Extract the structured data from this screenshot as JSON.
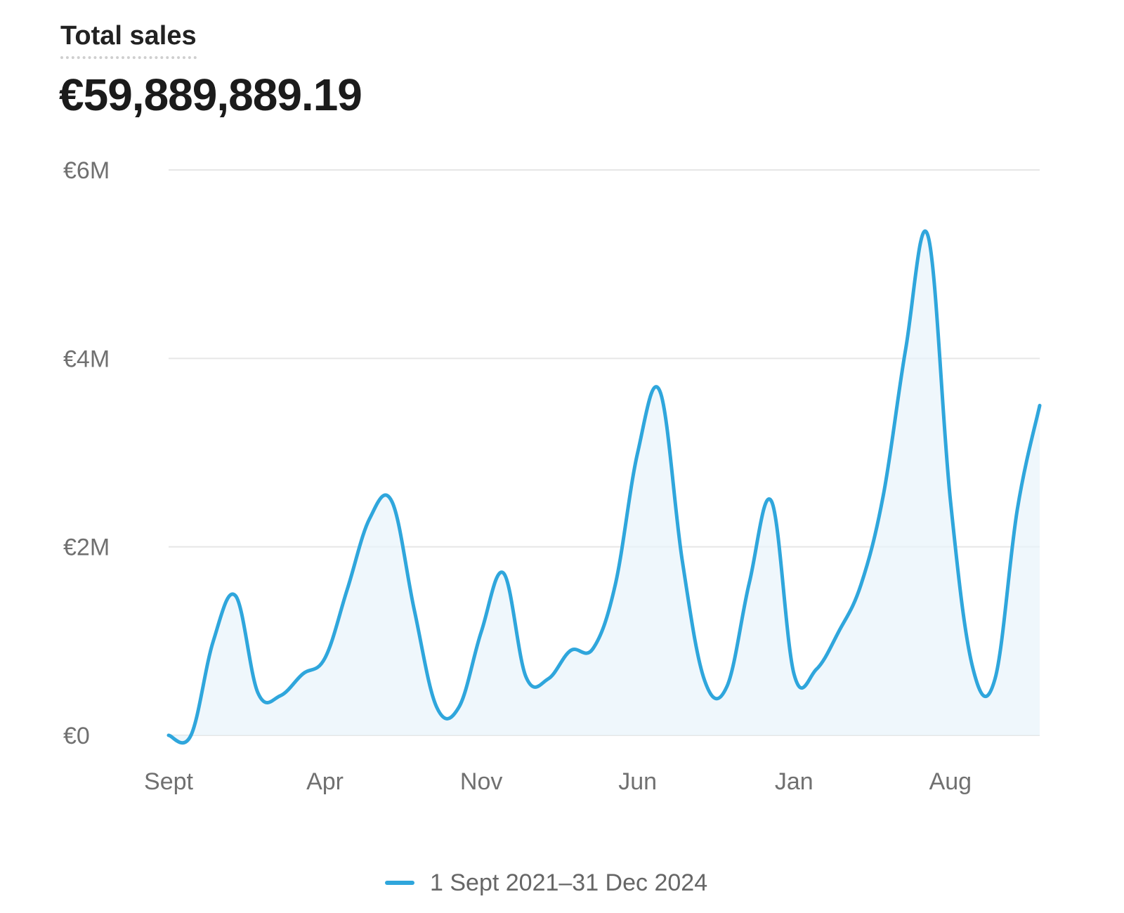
{
  "header": {
    "title": "Total sales",
    "total_value": "€59,889,889.19"
  },
  "legend": {
    "label": "1 Sept 2021–31 Dec 2024",
    "color": "#2fa6dc"
  },
  "colors": {
    "line": "#2fa6dc",
    "fill": "#e8f4fb",
    "grid": "#e6e6e6",
    "tick_text": "#707070"
  },
  "chart_data": {
    "type": "line",
    "title": "Total sales",
    "xlabel": "",
    "ylabel": "",
    "ylim": [
      0,
      6000000
    ],
    "xlim": [
      "2021-09",
      "2024-12"
    ],
    "y_ticks": [
      {
        "value": 0,
        "label": "€0"
      },
      {
        "value": 2000000,
        "label": "€2M"
      },
      {
        "value": 4000000,
        "label": "€4M"
      },
      {
        "value": 6000000,
        "label": "€6M"
      }
    ],
    "x_ticks": [
      {
        "value": "2021-09",
        "label": "Sept"
      },
      {
        "value": "2022-04",
        "label": "Apr"
      },
      {
        "value": "2022-11",
        "label": "Nov"
      },
      {
        "value": "2023-06",
        "label": "Jun"
      },
      {
        "value": "2024-01",
        "label": "Jan"
      },
      {
        "value": "2024-08",
        "label": "Aug"
      }
    ],
    "grid": true,
    "legend_position": "bottom-center",
    "series": [
      {
        "name": "1 Sept 2021–31 Dec 2024",
        "x": [
          "2021-09",
          "2021-10",
          "2021-11",
          "2021-12",
          "2022-01",
          "2022-02",
          "2022-03",
          "2022-04",
          "2022-05",
          "2022-06",
          "2022-07",
          "2022-08",
          "2022-09",
          "2022-10",
          "2022-11",
          "2022-12",
          "2023-01",
          "2023-02",
          "2023-03",
          "2023-04",
          "2023-05",
          "2023-06",
          "2023-07",
          "2023-08",
          "2023-09",
          "2023-10",
          "2023-11",
          "2023-12",
          "2024-01",
          "2024-02",
          "2024-03",
          "2024-04",
          "2024-05",
          "2024-06",
          "2024-07",
          "2024-08",
          "2024-09",
          "2024-10",
          "2024-11",
          "2024-12"
        ],
        "values": [
          0,
          0,
          1000000,
          1480000,
          450000,
          420000,
          650000,
          820000,
          1550000,
          2300000,
          2480000,
          1330000,
          300000,
          300000,
          1100000,
          1720000,
          620000,
          600000,
          900000,
          920000,
          1600000,
          3000000,
          3650000,
          1850000,
          580000,
          520000,
          1620000,
          2480000,
          650000,
          700000,
          1100000,
          1600000,
          2550000,
          4100000,
          5300000,
          2500000,
          720000,
          600000,
          2400000,
          3500000
        ]
      }
    ]
  }
}
